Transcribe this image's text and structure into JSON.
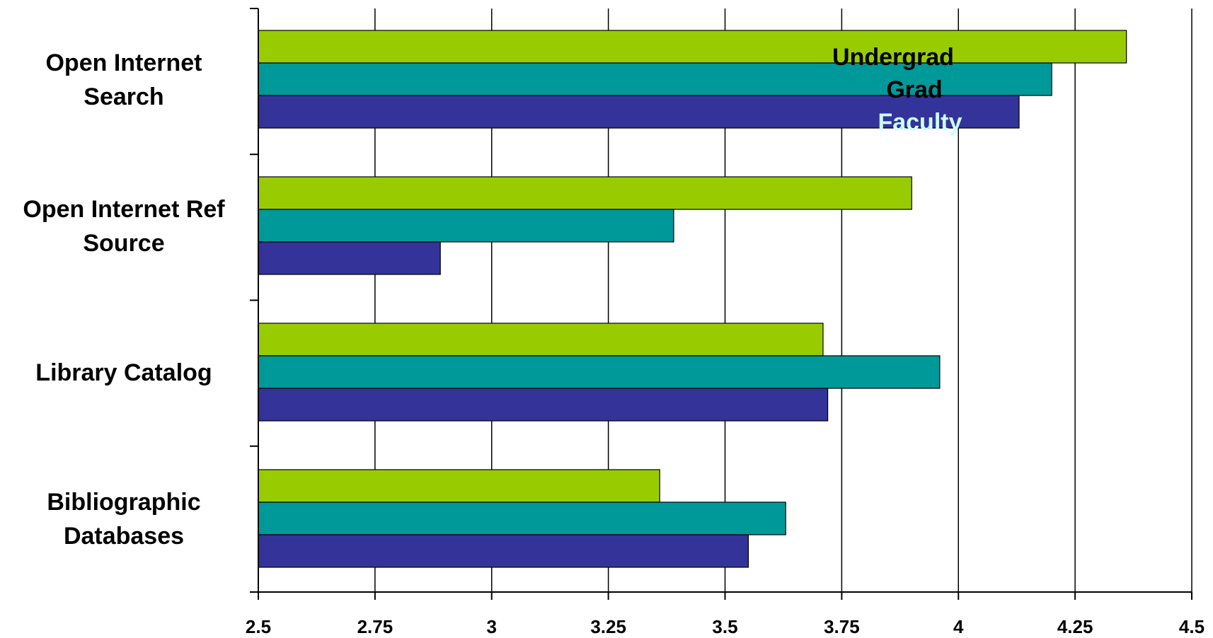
{
  "chart_data": {
    "type": "bar",
    "orientation": "horizontal",
    "categories": [
      [
        "Open Internet",
        "Search"
      ],
      [
        "Open Internet Ref",
        "Source"
      ],
      [
        "Library Catalog"
      ],
      [
        "Bibliographic",
        "Databases"
      ]
    ],
    "series": [
      {
        "name": "Undergrad",
        "color": "#99cc00",
        "label_color": "#000000",
        "values": [
          4.36,
          3.9,
          3.71,
          3.36
        ]
      },
      {
        "name": "Grad",
        "color": "#009999",
        "label_color": "#000000",
        "values": [
          4.2,
          3.39,
          3.96,
          3.63
        ]
      },
      {
        "name": "Faculty",
        "color": "#333399",
        "label_color": "#ccffff",
        "values": [
          4.13,
          2.89,
          3.72,
          3.55
        ]
      }
    ],
    "xlim": [
      2.5,
      4.5
    ],
    "x_ticks": [
      "2.5",
      "2.75",
      "3",
      "3.25",
      "3.5",
      "3.75",
      "4",
      "4.25",
      "4.5"
    ],
    "x_tick_values": [
      2.5,
      2.75,
      3,
      3.25,
      3.5,
      3.75,
      4,
      4.25,
      4.5
    ],
    "grid": "vertical",
    "title": "",
    "xlabel": "",
    "ylabel": "",
    "legend": "series names written on the first category's bars"
  }
}
